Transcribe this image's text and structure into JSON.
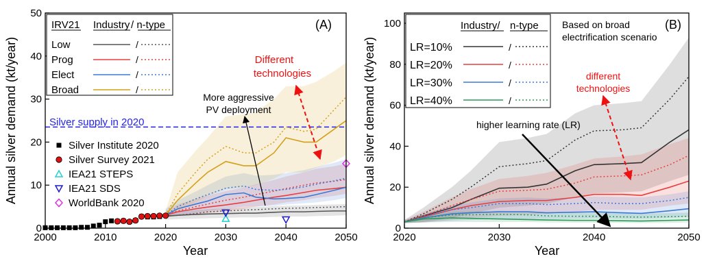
{
  "chart_data": [
    {
      "type": "line",
      "panel_label": "(A)",
      "xlabel": "Year",
      "ylabel": "Annual silver demand (kt/year)",
      "xlim": [
        2000,
        2050
      ],
      "ylim": [
        0,
        50
      ],
      "xticks": [
        2000,
        2010,
        2020,
        2030,
        2040,
        2050
      ],
      "yticks": [
        0,
        10,
        20,
        30,
        40,
        50
      ],
      "legend": {
        "position": "top-left",
        "header": [
          "IRV21",
          "Industry",
          "/ n-type"
        ],
        "rows": [
          {
            "name": "Low",
            "color": "#555555"
          },
          {
            "name": "Prog",
            "color": "#e83e3e"
          },
          {
            "name": "Elect",
            "color": "#3a78d6"
          },
          {
            "name": "Broad",
            "color": "#d4a017"
          }
        ]
      },
      "reference_line": {
        "label": "Silver supply in 2020",
        "y": 23.5,
        "color": "#2222ee"
      },
      "annotations": {
        "technologies": "Different technologies",
        "deployment": "More aggressive PV deployment"
      },
      "x": [
        2020,
        2022,
        2025,
        2027,
        2030,
        2033,
        2035,
        2038,
        2040,
        2043,
        2045,
        2048,
        2050
      ],
      "series": [
        {
          "name": "Low",
          "color": "#555555",
          "industry": [
            2.8,
            3.0,
            3.2,
            3.3,
            3.4,
            3.5,
            3.5,
            3.7,
            3.8,
            3.8,
            3.9,
            4.0,
            4.0
          ],
          "ntype": [
            2.8,
            3.0,
            3.4,
            3.8,
            4.0,
            4.2,
            4.3,
            4.5,
            4.6,
            4.7,
            4.8,
            4.9,
            5.0
          ],
          "band": [
            [
              2.0,
              3.5
            ],
            [
              2.1,
              3.9
            ],
            [
              2.2,
              4.2
            ],
            [
              2.3,
              4.4
            ],
            [
              2.4,
              4.6
            ],
            [
              2.5,
              4.8
            ],
            [
              2.5,
              4.9
            ],
            [
              2.6,
              5.1
            ],
            [
              2.7,
              5.2
            ],
            [
              2.7,
              5.3
            ],
            [
              2.8,
              5.4
            ],
            [
              2.9,
              5.5
            ],
            [
              3.0,
              5.6
            ]
          ]
        },
        {
          "name": "Prog",
          "color": "#e83e3e",
          "industry": [
            3.0,
            3.8,
            4.5,
            4.9,
            5.4,
            6.0,
            6.5,
            7.2,
            7.6,
            8.3,
            8.8,
            9.2,
            9.5
          ],
          "ntype": [
            3.0,
            4.0,
            5.0,
            5.6,
            6.5,
            7.2,
            7.8,
            8.6,
            9.2,
            10.0,
            10.5,
            10.9,
            11.3
          ],
          "band": [
            [
              2.5,
              4.0
            ],
            [
              2.8,
              5.5
            ],
            [
              3.2,
              6.8
            ],
            [
              3.5,
              7.6
            ],
            [
              4.0,
              8.6
            ],
            [
              4.5,
              9.5
            ],
            [
              5.0,
              10.2
            ],
            [
              5.5,
              11.2
            ],
            [
              6.0,
              12.0
            ],
            [
              6.5,
              13.0
            ],
            [
              7.0,
              13.8
            ],
            [
              7.5,
              14.4
            ],
            [
              8.0,
              15.0
            ]
          ]
        },
        {
          "name": "Elect",
          "color": "#3a78d6",
          "industry": [
            3.0,
            4.5,
            5.6,
            6.3,
            7.8,
            8.2,
            7.2,
            6.8,
            6.9,
            7.2,
            7.8,
            8.8,
            9.5
          ],
          "ntype": [
            3.0,
            5.0,
            6.8,
            7.8,
            9.3,
            9.8,
            9.0,
            8.8,
            9.0,
            9.6,
            10.2,
            11.0,
            11.6
          ],
          "band": [
            [
              2.5,
              4.5
            ],
            [
              3.0,
              6.5
            ],
            [
              3.5,
              8.5
            ],
            [
              4.0,
              10.0
            ],
            [
              4.5,
              12.0
            ],
            [
              5.0,
              12.8
            ],
            [
              5.0,
              12.2
            ],
            [
              5.2,
              12.4
            ],
            [
              5.5,
              12.8
            ],
            [
              5.8,
              13.5
            ],
            [
              6.0,
              14.2
            ],
            [
              6.5,
              15.2
            ],
            [
              7.0,
              16.0
            ]
          ]
        },
        {
          "name": "Broad",
          "color": "#d4a017",
          "industry": [
            3.0,
            6.5,
            10.5,
            13.0,
            15.5,
            14.5,
            14.5,
            17.5,
            21.0,
            20.0,
            20.0,
            23.0,
            25.0
          ],
          "ntype": [
            3.0,
            8.0,
            13.0,
            16.0,
            19.0,
            17.5,
            17.5,
            20.0,
            23.5,
            22.5,
            23.0,
            27.5,
            30.5
          ],
          "band": [
            [
              2.5,
              4.0
            ],
            [
              4.0,
              13.0
            ],
            [
              6.0,
              18.0
            ],
            [
              7.5,
              21.0
            ],
            [
              9.0,
              26.0
            ],
            [
              9.5,
              26.5
            ],
            [
              10.0,
              27.0
            ],
            [
              11.5,
              30.0
            ],
            [
              13.0,
              33.0
            ],
            [
              13.0,
              33.0
            ],
            [
              14.0,
              34.0
            ],
            [
              15.5,
              36.5
            ],
            [
              17.0,
              38.5
            ]
          ]
        }
      ],
      "markers": [
        {
          "name": "Silver Institute 2020",
          "shape": "square",
          "color": "#000000",
          "x": [
            2000,
            2001,
            2002,
            2003,
            2004,
            2005,
            2006,
            2007,
            2008,
            2009,
            2010,
            2011,
            2012,
            2013,
            2014,
            2015,
            2016,
            2017,
            2018,
            2019
          ],
          "y": [
            0.1,
            0.1,
            0.1,
            0.1,
            0.1,
            0.1,
            0.2,
            0.2,
            0.5,
            0.7,
            1.5,
            1.7,
            1.6,
            1.7,
            1.5,
            1.8,
            2.7,
            2.6,
            2.6,
            2.7
          ]
        },
        {
          "name": "Silver Survey 2021",
          "shape": "circle",
          "color": "#dd1111",
          "x": [
            2012,
            2013,
            2014,
            2015,
            2016,
            2017,
            2018,
            2019,
            2020
          ],
          "y": [
            1.6,
            1.7,
            1.5,
            1.8,
            2.7,
            2.8,
            2.8,
            2.9,
            2.9
          ]
        },
        {
          "name": "IEA21 STEPS",
          "shape": "triangle-up",
          "color": "#22d0d0",
          "x": [
            2030
          ],
          "y": [
            2.2
          ]
        },
        {
          "name": "IEA21 SDS",
          "shape": "triangle-down",
          "color": "#1a1acc",
          "x": [
            2030,
            2040
          ],
          "y": [
            3.6,
            2.0
          ]
        },
        {
          "name": "WorldBank 2020",
          "shape": "diamond",
          "color": "#dd33dd",
          "x": [
            2050
          ],
          "y": [
            15.0
          ]
        }
      ]
    },
    {
      "type": "line",
      "panel_label": "(B)",
      "xlabel": "Year",
      "ylabel": "Annual silver demand (kt/year)",
      "xlim": [
        2020,
        2050
      ],
      "ylim": [
        0,
        105
      ],
      "xticks": [
        2020,
        2030,
        2040,
        2050
      ],
      "yticks": [
        0,
        20,
        40,
        60,
        80,
        100
      ],
      "legend": {
        "position": "top-left",
        "header": [
          "Industry/",
          "n-type"
        ],
        "rows": [
          {
            "name": "LR=10%",
            "color": "#333333"
          },
          {
            "name": "LR=20%",
            "color": "#e83e3e"
          },
          {
            "name": "LR=30%",
            "color": "#3a78d6"
          },
          {
            "name": "LR=40%",
            "color": "#2a9a5a"
          }
        ]
      },
      "annotations": {
        "scenario": "Based on broad electrification scenario",
        "technologies": "different technologies",
        "learning": "higher learning rate (LR)"
      },
      "x": [
        2020,
        2022,
        2025,
        2027,
        2030,
        2033,
        2035,
        2038,
        2040,
        2043,
        2045,
        2048,
        2050
      ],
      "series": [
        {
          "name": "LR=10%",
          "color": "#333333",
          "industry": [
            3.0,
            6.0,
            10.0,
            14.0,
            19.5,
            20.0,
            21.5,
            28.0,
            31.0,
            31.5,
            32.0,
            42.0,
            48.0
          ],
          "ntype": [
            3.0,
            7.0,
            14.0,
            20.0,
            30.0,
            31.5,
            33.0,
            43.0,
            47.5,
            48.0,
            49.0,
            63.0,
            74.0
          ],
          "band": [
            [
              2.5,
              4.0
            ],
            [
              3.0,
              10.0
            ],
            [
              5.0,
              20.0
            ],
            [
              7.0,
              28.0
            ],
            [
              10.0,
              42.0
            ],
            [
              11.0,
              44.0
            ],
            [
              12.0,
              46.0
            ],
            [
              15.0,
              56.0
            ],
            [
              17.0,
              60.0
            ],
            [
              17.5,
              61.0
            ],
            [
              18.0,
              62.0
            ],
            [
              23.0,
              80.0
            ],
            [
              26.0,
              93.0
            ]
          ]
        },
        {
          "name": "LR=20%",
          "color": "#e83e3e",
          "industry": [
            3.0,
            5.5,
            9.0,
            11.0,
            13.0,
            13.5,
            13.5,
            15.0,
            16.5,
            16.5,
            16.0,
            20.0,
            23.0
          ],
          "ntype": [
            3.0,
            6.0,
            11.0,
            14.0,
            18.0,
            18.5,
            19.0,
            22.0,
            25.0,
            25.5,
            26.0,
            31.0,
            35.5
          ],
          "band": [
            [
              2.5,
              4.0
            ],
            [
              2.8,
              8.0
            ],
            [
              4.0,
              15.0
            ],
            [
              5.0,
              19.0
            ],
            [
              6.0,
              24.0
            ],
            [
              6.5,
              25.5
            ],
            [
              7.0,
              27.0
            ],
            [
              8.0,
              31.0
            ],
            [
              9.0,
              34.0
            ],
            [
              9.0,
              35.0
            ],
            [
              9.0,
              36.0
            ],
            [
              11.0,
              41.0
            ],
            [
              12.0,
              44.0
            ]
          ]
        },
        {
          "name": "LR=30%",
          "color": "#3a78d6",
          "industry": [
            3.0,
            5.0,
            7.0,
            7.5,
            8.0,
            8.0,
            7.5,
            7.8,
            8.0,
            7.5,
            7.2,
            8.5,
            9.5
          ],
          "ntype": [
            3.0,
            5.5,
            9.0,
            10.0,
            12.0,
            12.0,
            11.5,
            12.0,
            12.5,
            12.0,
            12.0,
            13.5,
            15.0
          ],
          "band": [
            [
              2.5,
              4.0
            ],
            [
              2.8,
              7.0
            ],
            [
              3.5,
              11.0
            ],
            [
              4.0,
              12.5
            ],
            [
              4.5,
              14.5
            ],
            [
              4.5,
              15.0
            ],
            [
              4.5,
              14.5
            ],
            [
              4.6,
              15.0
            ],
            [
              4.8,
              15.5
            ],
            [
              4.6,
              15.2
            ],
            [
              4.5,
              15.0
            ],
            [
              5.0,
              16.5
            ],
            [
              5.5,
              18.0
            ]
          ]
        },
        {
          "name": "LR=40%",
          "color": "#2a9a5a",
          "industry": [
            3.0,
            4.5,
            5.0,
            4.8,
            4.5,
            4.2,
            4.0,
            3.8,
            3.8,
            3.6,
            3.5,
            3.8,
            4.0
          ],
          "ntype": [
            3.0,
            5.0,
            6.5,
            6.5,
            6.8,
            6.5,
            6.0,
            5.8,
            5.8,
            5.5,
            5.4,
            5.6,
            5.8
          ],
          "band": [
            [
              2.5,
              3.8
            ],
            [
              2.8,
              6.0
            ],
            [
              3.0,
              8.0
            ],
            [
              3.0,
              8.2
            ],
            [
              3.0,
              8.5
            ],
            [
              3.0,
              8.2
            ],
            [
              2.8,
              7.8
            ],
            [
              2.7,
              7.6
            ],
            [
              2.7,
              7.6
            ],
            [
              2.6,
              7.3
            ],
            [
              2.5,
              7.2
            ],
            [
              2.6,
              7.4
            ],
            [
              2.8,
              7.6
            ]
          ]
        }
      ]
    }
  ]
}
